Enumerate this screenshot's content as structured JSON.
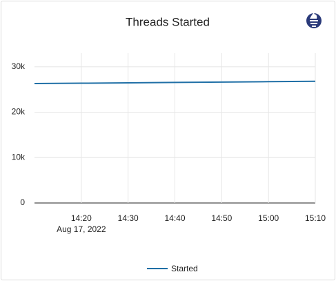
{
  "chart_data": {
    "type": "line",
    "title": "Threads Started",
    "x": [
      "2022-08-17T14:10",
      "2022-08-17T14:20",
      "2022-08-17T14:30",
      "2022-08-17T14:40",
      "2022-08-17T14:50",
      "2022-08-17T15:00",
      "2022-08-17T15:10"
    ],
    "series": [
      {
        "name": "Started",
        "color": "#1f6fa6",
        "values": [
          26300,
          26380,
          26470,
          26550,
          26630,
          26720,
          26800
        ]
      }
    ],
    "xlim": [
      "2022-08-17T14:10",
      "2022-08-17T15:10"
    ],
    "xticks": [
      {
        "value": "2022-08-17T14:20",
        "label": "14:20",
        "sublabel": "Aug 17, 2022"
      },
      {
        "value": "2022-08-17T14:30",
        "label": "14:30"
      },
      {
        "value": "2022-08-17T14:40",
        "label": "14:40"
      },
      {
        "value": "2022-08-17T14:50",
        "label": "14:50"
      },
      {
        "value": "2022-08-17T15:00",
        "label": "15:00"
      },
      {
        "value": "2022-08-17T15:10",
        "label": "15:10"
      }
    ],
    "ylim": [
      0,
      33000
    ],
    "yticks": [
      0,
      {
        "value": 10000,
        "label": "10k"
      },
      {
        "value": 20000,
        "label": "20k"
      },
      {
        "value": 30000,
        "label": "30k"
      }
    ],
    "grid": true,
    "legend": "bottom"
  }
}
